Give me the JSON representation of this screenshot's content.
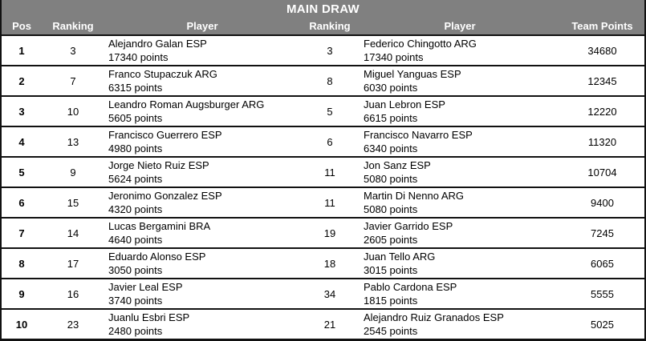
{
  "title": "MAIN DRAW",
  "columns": [
    "Pos",
    "Ranking",
    "Player",
    "Ranking",
    "Player",
    "Team Points"
  ],
  "colors": {
    "header_bg": "#808080",
    "header_text": "#ffffff",
    "row_bg": "#ffffff",
    "body_text": "#000000",
    "border": "#111111"
  },
  "rows": [
    {
      "pos": "1",
      "ranking1": "3",
      "player1_name": "Alejandro Galan ESP",
      "player1_points": "17340 points",
      "ranking2": "3",
      "player2_name": "Federico Chingotto ARG",
      "player2_points": "17340 points",
      "team_points": "34680"
    },
    {
      "pos": "2",
      "ranking1": "7",
      "player1_name": "Franco Stupaczuk ARG",
      "player1_points": "6315 points",
      "ranking2": "8",
      "player2_name": "Miguel Yanguas ESP",
      "player2_points": "6030 points",
      "team_points": "12345"
    },
    {
      "pos": "3",
      "ranking1": "10",
      "player1_name": "Leandro Roman Augsburger ARG",
      "player1_points": "5605 points",
      "ranking2": "5",
      "player2_name": "Juan Lebron ESP",
      "player2_points": "6615 points",
      "team_points": "12220"
    },
    {
      "pos": "4",
      "ranking1": "13",
      "player1_name": "Francisco Guerrero ESP",
      "player1_points": "4980 points",
      "ranking2": "6",
      "player2_name": "Francisco Navarro ESP",
      "player2_points": "6340 points",
      "team_points": "11320"
    },
    {
      "pos": "5",
      "ranking1": "9",
      "player1_name": "Jorge Nieto Ruiz ESP",
      "player1_points": "5624 points",
      "ranking2": "11",
      "player2_name": "Jon Sanz ESP",
      "player2_points": "5080 points",
      "team_points": "10704"
    },
    {
      "pos": "6",
      "ranking1": "15",
      "player1_name": "Jeronimo Gonzalez ESP",
      "player1_points": "4320 points",
      "ranking2": "11",
      "player2_name": "Martin Di Nenno ARG",
      "player2_points": "5080 points",
      "team_points": "9400"
    },
    {
      "pos": "7",
      "ranking1": "14",
      "player1_name": "Lucas Bergamini BRA",
      "player1_points": "4640 points",
      "ranking2": "19",
      "player2_name": "Javier Garrido ESP",
      "player2_points": "2605 points",
      "team_points": "7245"
    },
    {
      "pos": "8",
      "ranking1": "17",
      "player1_name": "Eduardo Alonso ESP",
      "player1_points": "3050 points",
      "ranking2": "18",
      "player2_name": "Juan Tello ARG",
      "player2_points": "3015 points",
      "team_points": "6065"
    },
    {
      "pos": "9",
      "ranking1": "16",
      "player1_name": "Javier Leal ESP",
      "player1_points": "3740 points",
      "ranking2": "34",
      "player2_name": "Pablo Cardona ESP",
      "player2_points": "1815 points",
      "team_points": "5555"
    },
    {
      "pos": "10",
      "ranking1": "23",
      "player1_name": "Juanlu Esbri ESP",
      "player1_points": "2480 points",
      "ranking2": "21",
      "player2_name": "Alejandro Ruiz Granados ESP",
      "player2_points": "2545 points",
      "team_points": "5025"
    }
  ]
}
